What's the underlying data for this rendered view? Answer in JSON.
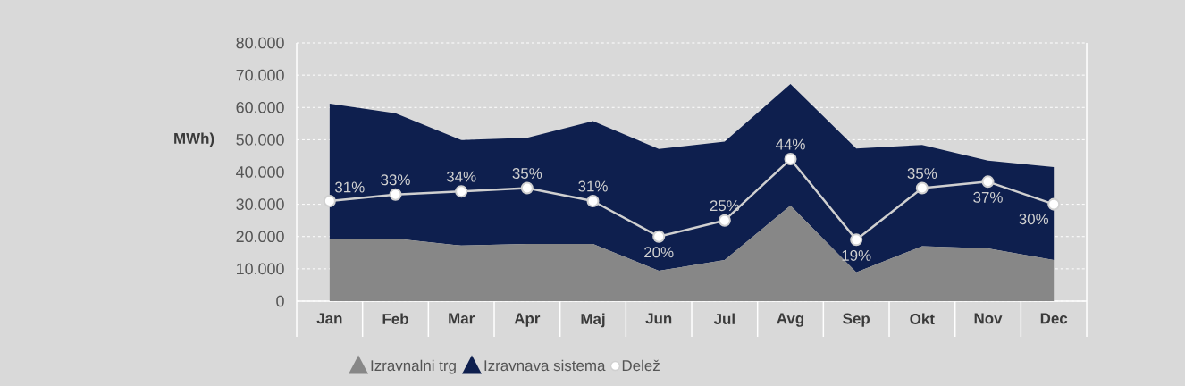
{
  "chart_data": {
    "type": "area",
    "stacked": true,
    "ylabel": "MWh)",
    "categories": [
      "Jan",
      "Feb",
      "Mar",
      "Apr",
      "Maj",
      "Jun",
      "Jul",
      "Avg",
      "Sep",
      "Okt",
      "Nov",
      "Dec"
    ],
    "ylim": [
      0,
      80000
    ],
    "yticks": [
      0,
      {
        "value": 10000,
        "label": "10.000"
      },
      {
        "value": 20000,
        "label": "20.000"
      },
      {
        "value": 30000,
        "label": "30.000"
      },
      {
        "value": 40000,
        "label": "40.000"
      },
      {
        "value": 50000,
        "label": "50.000"
      },
      {
        "value": 60000,
        "label": "60.000"
      },
      {
        "value": 70000,
        "label": "70.000"
      },
      {
        "value": 80000,
        "label": "80.000"
      }
    ],
    "y2lim": [
      0,
      80
    ],
    "grid": "y",
    "legend": "bottom",
    "series": [
      {
        "name": "Izravnalni trg",
        "color": "#878787",
        "values": [
          19100,
          19400,
          17200,
          17700,
          17700,
          9400,
          12700,
          29600,
          8900,
          17000,
          16300,
          12700
        ]
      },
      {
        "name": "Izravnava sistema",
        "color": "#0e1f4e",
        "values": [
          42100,
          38800,
          32700,
          32900,
          38100,
          37700,
          36700,
          37700,
          38400,
          31400,
          27200,
          28800
        ]
      },
      {
        "name": "Delež",
        "type": "line",
        "axis": "y2",
        "color": "#d0d0d0",
        "marker": "circle",
        "values": [
          31,
          33,
          34,
          35,
          31,
          20,
          25,
          44,
          19,
          35,
          37,
          30
        ],
        "value_labels": [
          "31%",
          "33%",
          "34%",
          "35%",
          "31%",
          "20%",
          "25%",
          "44%",
          "19%",
          "35%",
          "37%",
          "30%"
        ]
      }
    ]
  }
}
